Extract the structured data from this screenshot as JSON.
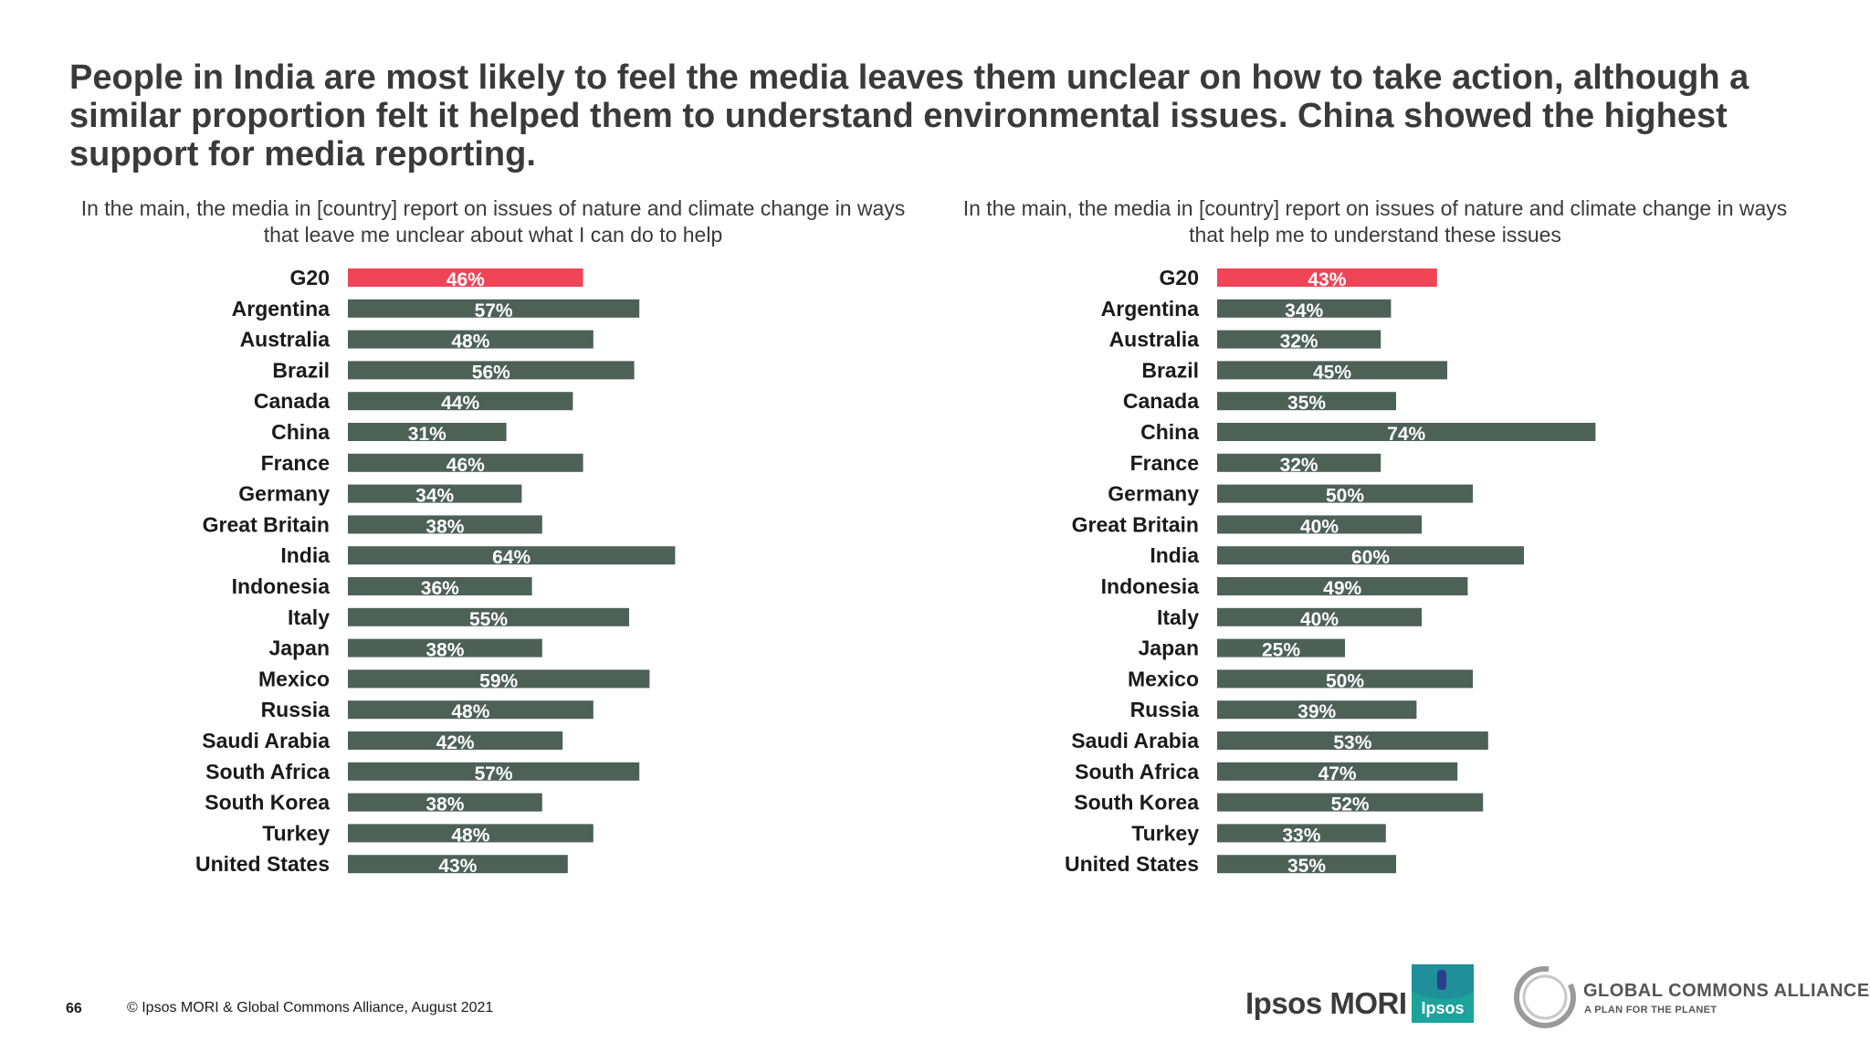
{
  "headline": "People in India are most likely to feel the media leaves them unclear on how to take action, although a similar proportion felt it helped them to understand environmental issues. China showed the highest support for media reporting.",
  "colors": {
    "highlight": "#ef4557",
    "bar": "#4d6157",
    "label_text": "#ffffff",
    "category_text": "#1a1a1a"
  },
  "chart_data": [
    {
      "type": "bar",
      "orientation": "horizontal",
      "title": "In the main, the media in [country] report on issues of nature and climate change in ways that leave me unclear about what I can do to help",
      "categories": [
        "G20",
        "Argentina",
        "Australia",
        "Brazil",
        "Canada",
        "China",
        "France",
        "Germany",
        "Great Britain",
        "India",
        "Indonesia",
        "Italy",
        "Japan",
        "Mexico",
        "Russia",
        "Saudi Arabia",
        "South Africa",
        "South Korea",
        "Turkey",
        "United States"
      ],
      "values": [
        46,
        57,
        48,
        56,
        44,
        31,
        46,
        34,
        38,
        64,
        36,
        55,
        38,
        59,
        48,
        42,
        57,
        38,
        48,
        43
      ],
      "unit": "%",
      "highlight_category": "G20",
      "grid": false,
      "legend": "none"
    },
    {
      "type": "bar",
      "orientation": "horizontal",
      "title": "In the main, the media in [country] report on issues of nature and climate change in ways that help me to understand these issues",
      "categories": [
        "G20",
        "Argentina",
        "Australia",
        "Brazil",
        "Canada",
        "China",
        "France",
        "Germany",
        "Great Britain",
        "India",
        "Indonesia",
        "Italy",
        "Japan",
        "Mexico",
        "Russia",
        "Saudi Arabia",
        "South Africa",
        "South Korea",
        "Turkey",
        "United States"
      ],
      "values": [
        43,
        34,
        32,
        45,
        35,
        74,
        32,
        50,
        40,
        60,
        49,
        40,
        25,
        50,
        39,
        53,
        47,
        52,
        33,
        35
      ],
      "unit": "%",
      "highlight_category": "G20",
      "grid": false,
      "legend": "none"
    }
  ],
  "footer": {
    "page_number": "66",
    "copyright": "© Ipsos MORI & Global Commons Alliance, August 2021"
  },
  "logos": {
    "ipsos_wordmark": "Ipsos MORI",
    "ipsos_badge": "Ipsos",
    "gca_name": "GLOBAL COMMONS ALLIANCE",
    "gca_tagline": "A PLAN FOR THE PLANET"
  }
}
